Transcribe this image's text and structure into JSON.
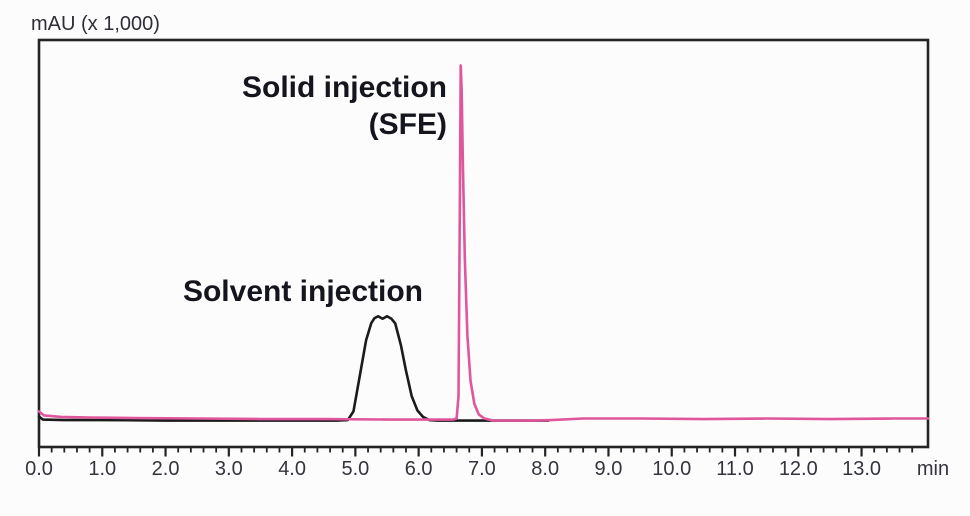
{
  "chart_data": {
    "type": "line",
    "title": "",
    "xlabel": "min",
    "ylabel": "mAU (x 1,000)",
    "xlim": [
      0,
      14.05
    ],
    "ylim": [
      -0.5,
      7.5
    ],
    "grid": false,
    "legend_position": "none",
    "x_major_ticks": [
      0,
      1,
      2,
      3,
      4,
      5,
      6,
      7,
      8,
      9,
      10,
      11,
      12,
      13
    ],
    "x_tick_labels": [
      "0.0",
      "1.0",
      "2.0",
      "3.0",
      "4.0",
      "5.0",
      "6.0",
      "7.0",
      "8.0",
      "9.0",
      "10.0",
      "11.0",
      "12.0",
      "13.0"
    ],
    "x_minor_tick_step": 0.2,
    "series": [
      {
        "name": "Solvent injection",
        "color": "#1b1b1b",
        "peak_time_min": 5.45,
        "peak_height_mAU_x1000": 2.07,
        "annotation": {
          "line1": "Solvent injection",
          "line2": ""
        },
        "points": [
          [
            0,
            0.1
          ],
          [
            0.06,
            0.04
          ],
          [
            0.4,
            0.03
          ],
          [
            1.0,
            0.03
          ],
          [
            2.0,
            0.02
          ],
          [
            3.0,
            0.02
          ],
          [
            4.0,
            0.02
          ],
          [
            4.7,
            0.02
          ],
          [
            4.88,
            0.03
          ],
          [
            4.97,
            0.2
          ],
          [
            5.07,
            0.9
          ],
          [
            5.17,
            1.6
          ],
          [
            5.25,
            1.93
          ],
          [
            5.3,
            2.03
          ],
          [
            5.36,
            2.07
          ],
          [
            5.43,
            2.02
          ],
          [
            5.5,
            2.07
          ],
          [
            5.57,
            2.02
          ],
          [
            5.63,
            1.93
          ],
          [
            5.72,
            1.5
          ],
          [
            5.8,
            1.0
          ],
          [
            5.89,
            0.5
          ],
          [
            5.98,
            0.22
          ],
          [
            6.07,
            0.09
          ],
          [
            6.17,
            0.03
          ],
          [
            6.3,
            0.02
          ],
          [
            7.0,
            0.02
          ],
          [
            7.6,
            0.02
          ],
          [
            8.05,
            0.02
          ]
        ]
      },
      {
        "name": "Solid injection (SFE)",
        "color": "#e0569c",
        "peak_time_min": 6.67,
        "peak_height_mAU_x1000": 7.0,
        "annotation": {
          "line1": "Solid injection",
          "line2": "(SFE)"
        },
        "points": [
          [
            0,
            0.2
          ],
          [
            0.08,
            0.12
          ],
          [
            0.35,
            0.09
          ],
          [
            0.8,
            0.08
          ],
          [
            1.5,
            0.07
          ],
          [
            2.5,
            0.06
          ],
          [
            3.5,
            0.05
          ],
          [
            4.5,
            0.05
          ],
          [
            5.5,
            0.04
          ],
          [
            6.2,
            0.04
          ],
          [
            6.55,
            0.04
          ],
          [
            6.6,
            0.06
          ],
          [
            6.63,
            0.5
          ],
          [
            6.65,
            4.0
          ],
          [
            6.665,
            7.0
          ],
          [
            6.68,
            6.5
          ],
          [
            6.7,
            5.0
          ],
          [
            6.73,
            3.2
          ],
          [
            6.77,
            1.7
          ],
          [
            6.82,
            0.8
          ],
          [
            6.88,
            0.35
          ],
          [
            6.95,
            0.14
          ],
          [
            7.04,
            0.06
          ],
          [
            7.18,
            0.02
          ],
          [
            7.8,
            0.02
          ],
          [
            8.1,
            0.03
          ],
          [
            8.6,
            0.06
          ],
          [
            9.5,
            0.06
          ],
          [
            10.5,
            0.05
          ],
          [
            11.5,
            0.06
          ],
          [
            12.5,
            0.05
          ],
          [
            13.5,
            0.06
          ],
          [
            14.05,
            0.06
          ]
        ]
      }
    ]
  }
}
